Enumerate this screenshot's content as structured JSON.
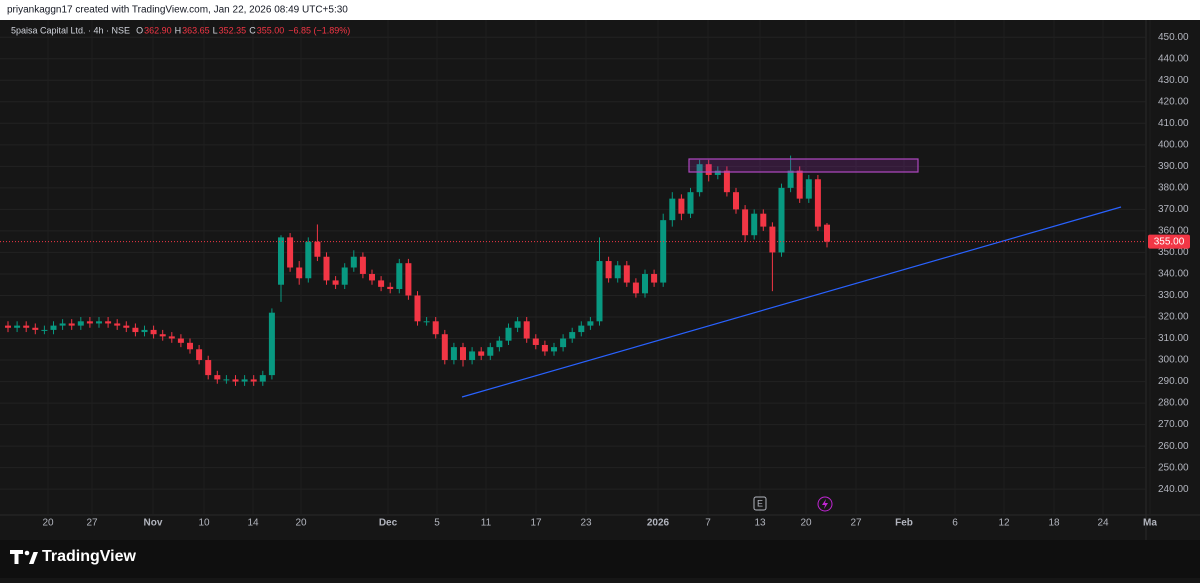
{
  "header": {
    "credit": "priyankaggn17 created with TradingView.com, Jan 22, 2026 08:49 UTC+5:30"
  },
  "legend": {
    "symbol": "5paisa Capital Ltd. · 4h · NSE",
    "items": [
      {
        "label": "O",
        "value": "362.90"
      },
      {
        "label": "H",
        "value": "363.65"
      },
      {
        "label": "L",
        "value": "352.35"
      },
      {
        "label": "C",
        "value": "355.00"
      }
    ],
    "change": "−6.85 (−1.89%)"
  },
  "footer": {
    "brand": "TradingView"
  },
  "event_markers": {
    "earnings": "E"
  },
  "chart_data": {
    "type": "candlestick",
    "up_color": "#089981",
    "down_color": "#f23645",
    "grid": true,
    "ylim": [
      228,
      458
    ],
    "yticks": [
      {
        "value": 240,
        "label": "240.00"
      },
      {
        "value": 250,
        "label": "250.00"
      },
      {
        "value": 260,
        "label": "260.00"
      },
      {
        "value": 270,
        "label": "270.00"
      },
      {
        "value": 280,
        "label": "280.00"
      },
      {
        "value": 290,
        "label": "290.00"
      },
      {
        "value": 300,
        "label": "300.00"
      },
      {
        "value": 310,
        "label": "310.00"
      },
      {
        "value": 320,
        "label": "320.00"
      },
      {
        "value": 330,
        "label": "330.00"
      },
      {
        "value": 340,
        "label": "340.00"
      },
      {
        "value": 350,
        "label": "350.00"
      },
      {
        "value": 360,
        "label": "360.00"
      },
      {
        "value": 370,
        "label": "370.00"
      },
      {
        "value": 380,
        "label": "380.00"
      },
      {
        "value": 390,
        "label": "390.00"
      },
      {
        "value": 400,
        "label": "400.00"
      },
      {
        "value": 410,
        "label": "410.00"
      },
      {
        "value": 420,
        "label": "420.00"
      },
      {
        "value": 430,
        "label": "430.00"
      },
      {
        "value": 440,
        "label": "440.00"
      },
      {
        "value": 450,
        "label": "450.00"
      }
    ],
    "xtick_labels": [
      "20",
      "27",
      "Nov",
      "10",
      "14",
      "20",
      "Dec",
      "5",
      "11",
      "17",
      "23",
      "2026",
      "7",
      "13",
      "20",
      "27",
      "Feb",
      "6",
      "12",
      "18",
      "24",
      "Ma"
    ],
    "last_price": {
      "value": 355,
      "label": "355.00"
    },
    "open": [
      316,
      315,
      316,
      315,
      314,
      314,
      316,
      317,
      316,
      318,
      317,
      318,
      317,
      316,
      315,
      313,
      314,
      312,
      311,
      310,
      308,
      305,
      300,
      293,
      291,
      291,
      290,
      291,
      290,
      293,
      335,
      357,
      343,
      338,
      355,
      348,
      337,
      335,
      343,
      348,
      340,
      337,
      334,
      333,
      345,
      330,
      318,
      318,
      312,
      300,
      306,
      300,
      304,
      302,
      306,
      309,
      315,
      318,
      310,
      307,
      304,
      306,
      310,
      313,
      316,
      318,
      346,
      338,
      344,
      336,
      331,
      340,
      336,
      365,
      375,
      368,
      378,
      391,
      386,
      388,
      378,
      370,
      358,
      368,
      362,
      350,
      380,
      388,
      375,
      384,
      362.9
    ],
    "high": [
      318,
      318,
      318,
      317,
      316,
      318,
      319,
      319,
      320,
      320,
      320,
      320,
      319,
      318,
      317,
      316,
      316,
      314,
      313,
      312,
      310,
      307,
      302,
      295,
      293,
      293,
      293,
      293,
      295,
      324,
      358,
      359,
      346,
      357,
      363,
      350,
      339,
      345,
      351,
      350,
      342,
      339,
      336,
      347,
      347,
      332,
      320,
      320,
      314,
      308,
      308,
      306,
      306,
      308,
      311,
      317,
      320,
      320,
      312,
      309,
      308,
      312,
      315,
      318,
      320,
      357,
      348,
      346,
      346,
      338,
      342,
      342,
      368,
      378,
      377,
      380,
      393,
      393,
      390,
      390,
      380,
      372,
      370,
      370,
      364,
      382,
      395,
      390,
      386,
      386,
      363.65
    ],
    "low": [
      313,
      313,
      313,
      312,
      312,
      312,
      314,
      314,
      314,
      315,
      315,
      315,
      314,
      313,
      311,
      311,
      310,
      309,
      308,
      306,
      303,
      298,
      291,
      289,
      289,
      288,
      288,
      288,
      288,
      291,
      327,
      341,
      335,
      336,
      346,
      335,
      333,
      333,
      341,
      338,
      335,
      332,
      331,
      331,
      328,
      316,
      316,
      310,
      298,
      298,
      297,
      298,
      300,
      300,
      304,
      307,
      313,
      308,
      305,
      302,
      302,
      304,
      308,
      311,
      314,
      316,
      336,
      336,
      334,
      329,
      329,
      334,
      334,
      362,
      365,
      366,
      376,
      383,
      384,
      376,
      368,
      355,
      356,
      360,
      332,
      348,
      378,
      373,
      373,
      360,
      352.35
    ],
    "close": [
      315,
      316,
      315,
      314,
      314,
      316,
      317,
      316,
      318,
      317,
      318,
      317,
      316,
      315,
      313,
      314,
      312,
      311,
      310,
      308,
      305,
      300,
      293,
      291,
      291,
      290,
      291,
      290,
      293,
      322,
      357,
      343,
      338,
      355,
      348,
      337,
      335,
      343,
      348,
      340,
      337,
      334,
      333,
      345,
      330,
      318,
      318,
      312,
      300,
      306,
      300,
      304,
      302,
      306,
      309,
      315,
      318,
      310,
      307,
      304,
      306,
      310,
      313,
      316,
      318,
      346,
      338,
      344,
      336,
      331,
      340,
      336,
      365,
      375,
      368,
      378,
      391,
      386,
      388,
      378,
      370,
      358,
      368,
      362,
      350,
      380,
      388,
      375,
      384,
      362,
      355
    ]
  }
}
